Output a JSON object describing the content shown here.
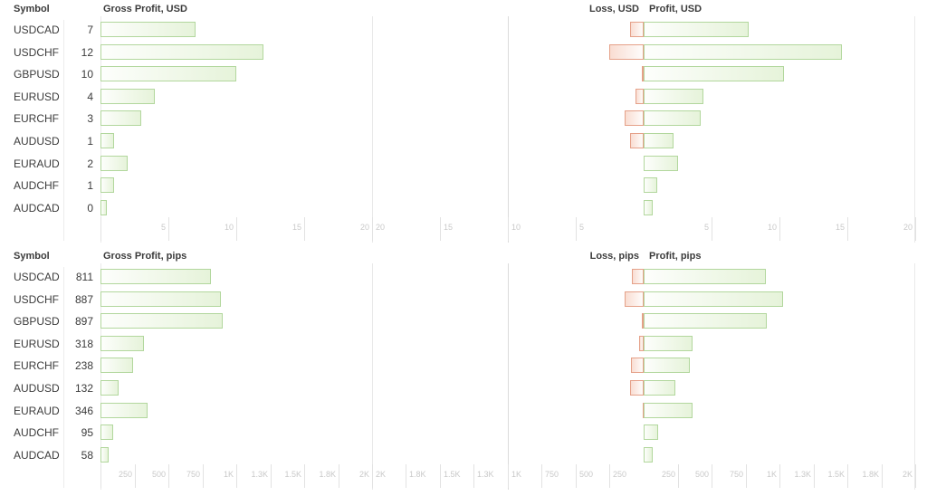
{
  "colors": {
    "text": "#3b3b3b",
    "green_border": "#b2d79d",
    "green_fill": "#e6f3da",
    "red_border": "#e5a189",
    "red_fill": "#f9ddd2",
    "axis_line": "#e9e9e9",
    "center_line": "#dcdcdc",
    "separator_line": "#ececec",
    "tick_line": "#e2e2e2",
    "tick_text": "#c9c9c9"
  },
  "chart_data": [
    {
      "type": "bar",
      "title": "Gross Profit, USD",
      "symbol_header": "Symbol",
      "categories": [
        "USDCAD",
        "USDCHF",
        "GBPUSD",
        "EURUSD",
        "EURCHF",
        "AUDUSD",
        "EURAUD",
        "AUDCHF",
        "AUDCAD"
      ],
      "values": [
        7,
        12,
        10,
        4,
        3,
        1,
        2,
        1,
        0
      ],
      "value_labels": [
        "7",
        "12",
        "10",
        "4",
        "3",
        "1",
        "2",
        "1",
        "0"
      ],
      "xlim": [
        0,
        20
      ],
      "ticks": [
        {
          "v": 5,
          "label": "5"
        },
        {
          "v": 10,
          "label": "10"
        },
        {
          "v": 15,
          "label": "15"
        },
        {
          "v": 20,
          "label": "20"
        }
      ],
      "grid": "ticks-only",
      "legend": "none"
    },
    {
      "type": "bar-diverging",
      "loss_title": "Loss, USD",
      "profit_title": "Profit, USD",
      "categories": [
        "USDCAD",
        "USDCHF",
        "GBPUSD",
        "EURUSD",
        "EURCHF",
        "AUDUSD",
        "EURAUD",
        "AUDCHF",
        "AUDCAD"
      ],
      "series": [
        {
          "name": "loss",
          "direction": "left",
          "values": [
            1.0,
            2.5,
            0.1,
            0.6,
            1.4,
            1.0,
            0,
            0,
            0
          ]
        },
        {
          "name": "profit",
          "direction": "right",
          "values": [
            7.7,
            14.6,
            10.3,
            4.4,
            4.2,
            2.2,
            2.5,
            1.0,
            0.65
          ]
        }
      ],
      "xlim": [
        -20,
        20
      ],
      "ticks_left": [
        {
          "v": 20,
          "label": "20"
        },
        {
          "v": 15,
          "label": "15"
        },
        {
          "v": 10,
          "label": "10"
        },
        {
          "v": 5,
          "label": "5"
        }
      ],
      "ticks_right": [
        {
          "v": 5,
          "label": "5"
        },
        {
          "v": 10,
          "label": "10"
        },
        {
          "v": 15,
          "label": "15"
        },
        {
          "v": 20,
          "label": "20"
        }
      ],
      "grid": "ticks-only",
      "legend": "none"
    },
    {
      "type": "bar",
      "title": "Gross Profit, pips",
      "symbol_header": "Symbol",
      "categories": [
        "USDCAD",
        "USDCHF",
        "GBPUSD",
        "EURUSD",
        "EURCHF",
        "AUDUSD",
        "EURAUD",
        "AUDCHF",
        "AUDCAD"
      ],
      "values": [
        811,
        887,
        897,
        318,
        238,
        132,
        346,
        95,
        58
      ],
      "value_labels": [
        "811",
        "887",
        "897",
        "318",
        "238",
        "132",
        "346",
        "95",
        "58"
      ],
      "xlim": [
        0,
        2000
      ],
      "ticks": [
        {
          "v": 250,
          "label": "250"
        },
        {
          "v": 500,
          "label": "500"
        },
        {
          "v": 750,
          "label": "750"
        },
        {
          "v": 1000,
          "label": "1K"
        },
        {
          "v": 1250,
          "label": "1.3K"
        },
        {
          "v": 1500,
          "label": "1.5K"
        },
        {
          "v": 1750,
          "label": "1.8K"
        },
        {
          "v": 2000,
          "label": "2K"
        }
      ],
      "grid": "ticks-only",
      "legend": "none"
    },
    {
      "type": "bar-diverging",
      "loss_title": "Loss, pips",
      "profit_title": "Profit, pips",
      "categories": [
        "USDCAD",
        "USDCHF",
        "GBPUSD",
        "EURUSD",
        "EURCHF",
        "AUDUSD",
        "EURAUD",
        "AUDCHF",
        "AUDCAD"
      ],
      "series": [
        {
          "name": "loss",
          "direction": "left",
          "values": [
            87,
            140,
            10,
            33,
            93,
            100,
            5,
            0,
            0
          ]
        },
        {
          "name": "profit",
          "direction": "right",
          "values": [
            900,
            1027,
            907,
            360,
            340,
            233,
            360,
            107,
            67
          ]
        }
      ],
      "xlim": [
        -2000,
        2000
      ],
      "ticks_left": [
        {
          "v": 2000,
          "label": "2K"
        },
        {
          "v": 1750,
          "label": "1.8K"
        },
        {
          "v": 1500,
          "label": "1.5K"
        },
        {
          "v": 1250,
          "label": "1.3K"
        },
        {
          "v": 1000,
          "label": "1K"
        },
        {
          "v": 750,
          "label": "750"
        },
        {
          "v": 500,
          "label": "500"
        },
        {
          "v": 250,
          "label": "250"
        }
      ],
      "ticks_right": [
        {
          "v": 250,
          "label": "250"
        },
        {
          "v": 500,
          "label": "500"
        },
        {
          "v": 750,
          "label": "750"
        },
        {
          "v": 1000,
          "label": "1K"
        },
        {
          "v": 1250,
          "label": "1.3K"
        },
        {
          "v": 1500,
          "label": "1.5K"
        },
        {
          "v": 1750,
          "label": "1.8K"
        },
        {
          "v": 2000,
          "label": "2K"
        }
      ],
      "grid": "ticks-only",
      "legend": "none"
    }
  ]
}
